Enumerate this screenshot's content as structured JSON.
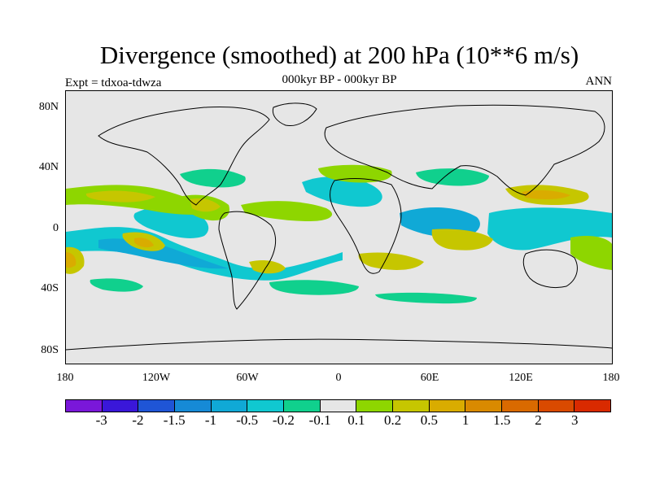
{
  "title": "Divergence (smoothed) at 200 hPa (10**6 m/s)",
  "subtitle": "000kyr BP - 000kyr BP",
  "left_label": "Expt = tdxoa-tdwza",
  "right_label": "ANN",
  "map": {
    "background_color": "#e6e6e6",
    "lat_labels": [
      "80N",
      "40N",
      "0",
      "40S",
      "80S"
    ],
    "lon_labels": [
      "180",
      "120W",
      "60W",
      "0",
      "60E",
      "120E",
      "180"
    ],
    "continent_outline_color": "#000000"
  },
  "colorbar": {
    "colors": [
      "#7a17d9",
      "#3a17d9",
      "#1f55d6",
      "#168ad6",
      "#10a9d6",
      "#10c8d0",
      "#10d08d",
      "#e6e6e6",
      "#8ed600",
      "#c6c600",
      "#d9ac00",
      "#d98a00",
      "#d96a00",
      "#d94a00",
      "#d92a00"
    ],
    "labels": [
      "-3",
      "-2",
      "-1.5",
      "-1",
      "-0.5",
      "-0.2",
      "-0.1",
      "0.1",
      "0.2",
      "0.5",
      "1",
      "1.5",
      "2",
      "3"
    ]
  }
}
